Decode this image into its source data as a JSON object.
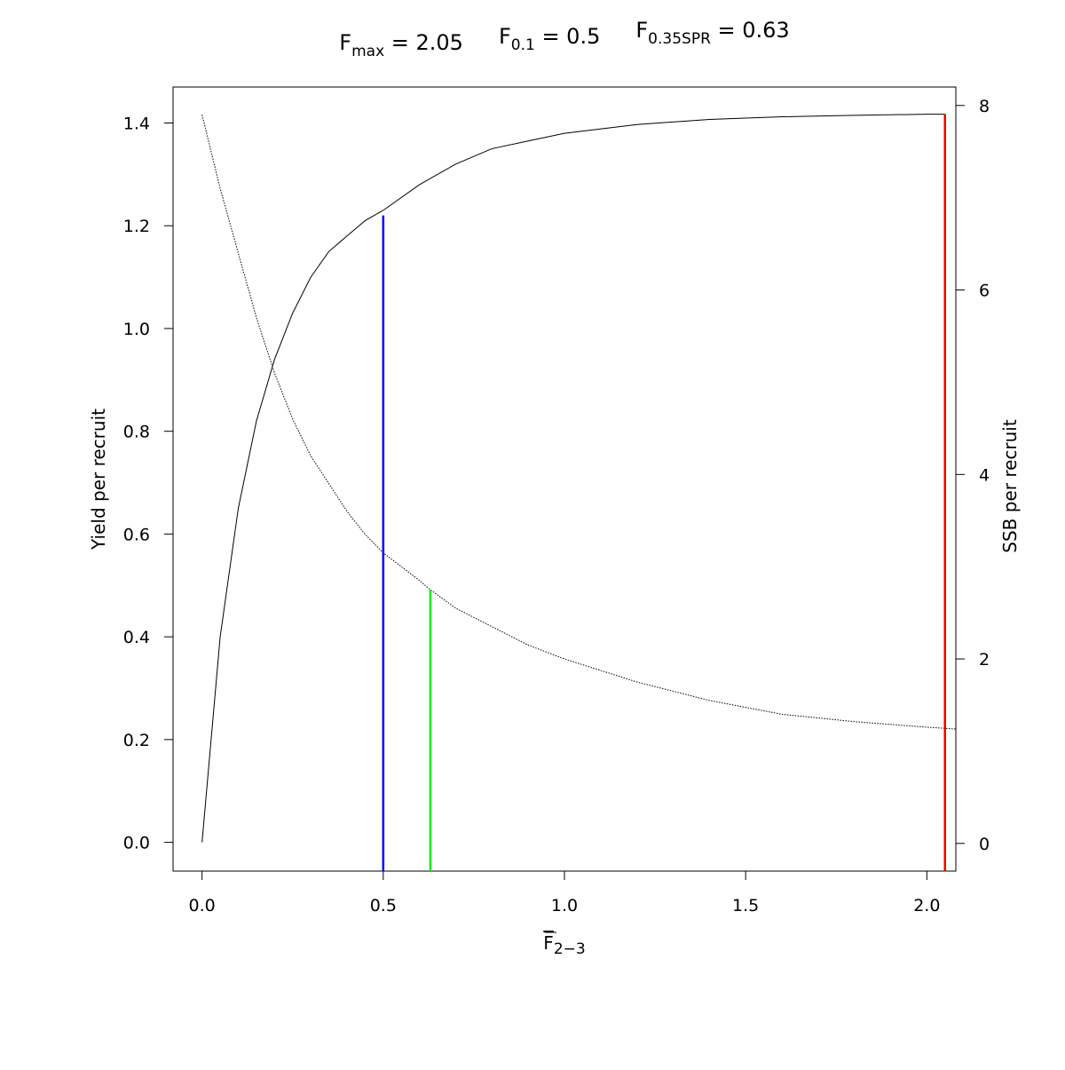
{
  "chart_data": {
    "type": "line",
    "title": {
      "terms": [
        {
          "base": "F",
          "sub": "max",
          "value": "= 2.05"
        },
        {
          "base": "F",
          "sub": "0.1",
          "value": "= 0.5"
        },
        {
          "base": "F",
          "sub": "0.35SPR",
          "value": "= 0.63"
        }
      ]
    },
    "xlabel": {
      "base": "F",
      "sub": "2−3"
    },
    "ylabel_left": "Yield per recruit",
    "ylabel_right": "SSB per recruit",
    "xlim": [
      -0.08,
      2.08
    ],
    "ylim_left": [
      -0.056,
      1.47
    ],
    "ylim_right": [
      -0.3,
      8.2
    ],
    "x_ticks": [
      0.0,
      0.5,
      1.0,
      1.5,
      2.0
    ],
    "x_tick_labels": [
      "0.0",
      "0.5",
      "1.0",
      "1.5",
      "2.0"
    ],
    "y_left_ticks": [
      0.0,
      0.2,
      0.4,
      0.6,
      0.8,
      1.0,
      1.2,
      1.4
    ],
    "y_left_tick_labels": [
      "0.0",
      "0.2",
      "0.4",
      "0.6",
      "0.8",
      "1.0",
      "1.2",
      "1.4"
    ],
    "y_right_ticks": [
      0,
      2,
      4,
      6,
      8
    ],
    "y_right_tick_labels": [
      "0",
      "2",
      "4",
      "6",
      "8"
    ],
    "grid": false,
    "series": [
      {
        "axis": "left",
        "style": "solid",
        "color": "#000000",
        "x": [
          0.0,
          0.05,
          0.1,
          0.15,
          0.2,
          0.25,
          0.3,
          0.35,
          0.4,
          0.45,
          0.5,
          0.6,
          0.7,
          0.8,
          0.9,
          1.0,
          1.2,
          1.4,
          1.6,
          1.8,
          2.0,
          2.05
        ],
        "y": [
          0.0,
          0.4,
          0.65,
          0.82,
          0.94,
          1.03,
          1.1,
          1.15,
          1.18,
          1.21,
          1.23,
          1.28,
          1.32,
          1.35,
          1.365,
          1.38,
          1.397,
          1.407,
          1.412,
          1.415,
          1.417,
          1.417
        ]
      },
      {
        "axis": "right",
        "style": "dotted",
        "color": "#000000",
        "x": [
          0.0,
          0.05,
          0.1,
          0.15,
          0.2,
          0.25,
          0.3,
          0.35,
          0.4,
          0.45,
          0.5,
          0.6,
          0.63,
          0.7,
          0.8,
          0.9,
          1.0,
          1.2,
          1.4,
          1.6,
          1.8,
          2.0,
          2.08
        ],
        "y": [
          7.9,
          7.1,
          6.4,
          5.7,
          5.1,
          4.6,
          4.2,
          3.9,
          3.6,
          3.35,
          3.15,
          2.85,
          2.75,
          2.55,
          2.35,
          2.15,
          2.0,
          1.75,
          1.55,
          1.4,
          1.32,
          1.26,
          1.24
        ]
      }
    ],
    "reference_lines": [
      {
        "x": 0.5,
        "axis": "left",
        "y_top": 1.22,
        "color": "#0000ff"
      },
      {
        "x": 0.63,
        "axis": "right",
        "y_top": 2.75,
        "color": "#00ee00"
      },
      {
        "x": 2.05,
        "axis": "left",
        "y_top": 1.417,
        "color": "#ee0000"
      }
    ]
  }
}
